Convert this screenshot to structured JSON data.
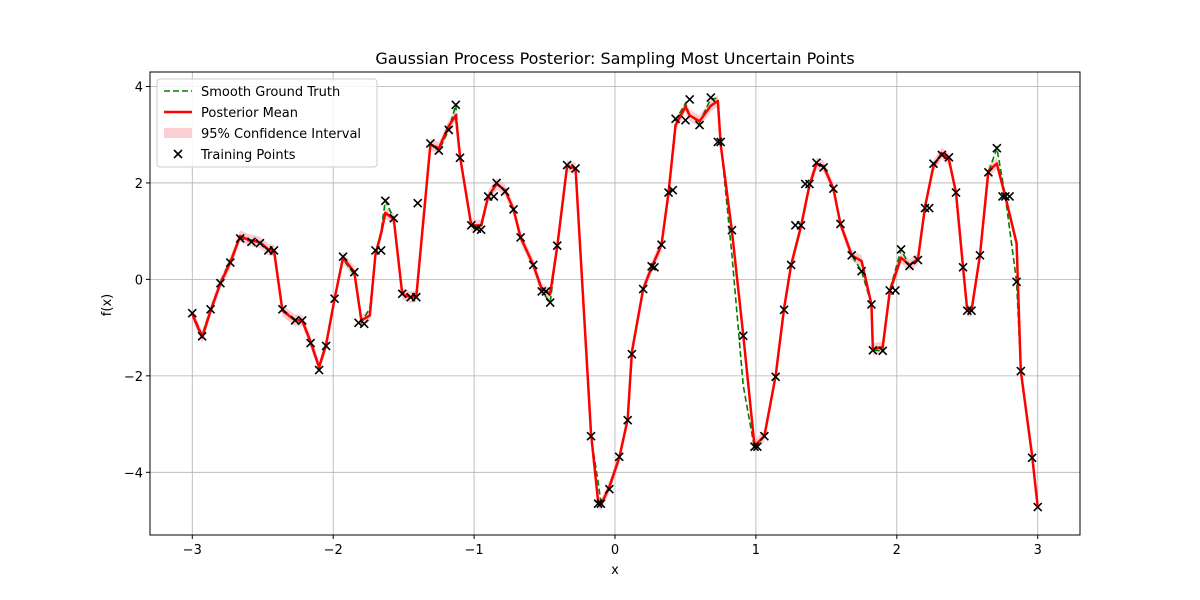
{
  "chart_data": {
    "type": "line",
    "title": "Gaussian Process Posterior: Sampling Most Uncertain Points",
    "xlabel": "x",
    "ylabel": "f(x)",
    "xlim": [
      -3.3,
      3.3
    ],
    "ylim": [
      -5.3,
      4.3
    ],
    "xticks": [
      -3,
      -2,
      -1,
      0,
      1,
      2,
      3
    ],
    "yticks": [
      -4,
      -2,
      0,
      2,
      4
    ],
    "grid": true,
    "legend_position": "top-left",
    "colors": {
      "ground_truth": "#008000",
      "posterior_mean": "#ff0000",
      "confidence": "#f4a0aa",
      "training": "#000000"
    },
    "legend": [
      {
        "label": "Smooth Ground Truth",
        "kind": "dashed-line",
        "color": "#008000"
      },
      {
        "label": "Posterior Mean",
        "kind": "line",
        "color": "#ff0000"
      },
      {
        "label": "95% Confidence Interval",
        "kind": "patch",
        "color": "#f4a0aa"
      },
      {
        "label": "Training Points",
        "kind": "x-marker",
        "color": "#000000"
      }
    ],
    "training_points": [
      [
        -3.0,
        -0.7
      ],
      [
        -2.93,
        -1.18
      ],
      [
        -2.87,
        -0.62
      ],
      [
        -2.8,
        -0.08
      ],
      [
        -2.73,
        0.35
      ],
      [
        -2.66,
        0.85
      ],
      [
        -2.58,
        0.78
      ],
      [
        -2.52,
        0.75
      ],
      [
        -2.46,
        0.6
      ],
      [
        -2.42,
        0.6
      ],
      [
        -2.36,
        -0.62
      ],
      [
        -2.27,
        -0.85
      ],
      [
        -2.22,
        -0.85
      ],
      [
        -2.16,
        -1.32
      ],
      [
        -2.1,
        -1.88
      ],
      [
        -2.05,
        -1.38
      ],
      [
        -1.99,
        -0.4
      ],
      [
        -1.93,
        0.47
      ],
      [
        -1.85,
        0.15
      ],
      [
        -1.82,
        -0.9
      ],
      [
        -1.78,
        -0.92
      ],
      [
        -1.7,
        0.6
      ],
      [
        -1.66,
        0.6
      ],
      [
        -1.63,
        1.63
      ],
      [
        -1.57,
        1.27
      ],
      [
        -1.51,
        -0.3
      ],
      [
        -1.45,
        -0.37
      ],
      [
        -1.41,
        -0.37
      ],
      [
        -1.4,
        1.58
      ],
      [
        -1.31,
        2.82
      ],
      [
        -1.25,
        2.67
      ],
      [
        -1.18,
        3.1
      ],
      [
        -1.13,
        3.62
      ],
      [
        -1.1,
        2.52
      ],
      [
        -1.02,
        1.12
      ],
      [
        -0.98,
        1.05
      ],
      [
        -0.95,
        1.03
      ],
      [
        -0.9,
        1.72
      ],
      [
        -0.86,
        1.72
      ],
      [
        -0.84,
        2.0
      ],
      [
        -0.78,
        1.82
      ],
      [
        -0.72,
        1.45
      ],
      [
        -0.67,
        0.87
      ],
      [
        -0.58,
        0.3
      ],
      [
        -0.52,
        -0.25
      ],
      [
        -0.49,
        -0.25
      ],
      [
        -0.46,
        -0.48
      ],
      [
        -0.41,
        0.7
      ],
      [
        -0.34,
        2.37
      ],
      [
        -0.28,
        2.3
      ],
      [
        -0.17,
        -3.25
      ],
      [
        -0.12,
        -4.65
      ],
      [
        -0.1,
        -4.65
      ],
      [
        -0.04,
        -4.35
      ],
      [
        0.03,
        -3.68
      ],
      [
        0.09,
        -2.92
      ],
      [
        0.12,
        -1.55
      ],
      [
        0.2,
        -0.2
      ],
      [
        0.26,
        0.27
      ],
      [
        0.28,
        0.25
      ],
      [
        0.33,
        0.72
      ],
      [
        0.38,
        1.8
      ],
      [
        0.41,
        1.85
      ],
      [
        0.43,
        3.33
      ],
      [
        0.5,
        3.3
      ],
      [
        0.53,
        3.73
      ],
      [
        0.6,
        3.2
      ],
      [
        0.68,
        3.77
      ],
      [
        0.73,
        2.85
      ],
      [
        0.75,
        2.85
      ],
      [
        0.83,
        1.02
      ],
      [
        0.91,
        -1.17
      ],
      [
        0.99,
        -3.47
      ],
      [
        1.01,
        -3.47
      ],
      [
        1.06,
        -3.25
      ],
      [
        1.14,
        -2.02
      ],
      [
        1.2,
        -0.63
      ],
      [
        1.25,
        0.3
      ],
      [
        1.28,
        1.12
      ],
      [
        1.32,
        1.12
      ],
      [
        1.35,
        1.98
      ],
      [
        1.38,
        1.98
      ],
      [
        1.43,
        2.42
      ],
      [
        1.48,
        2.32
      ],
      [
        1.55,
        1.88
      ],
      [
        1.6,
        1.15
      ],
      [
        1.68,
        0.5
      ],
      [
        1.75,
        0.17
      ],
      [
        1.82,
        -0.52
      ],
      [
        1.83,
        -1.47
      ],
      [
        1.9,
        -1.48
      ],
      [
        1.95,
        -0.23
      ],
      [
        1.99,
        -0.23
      ],
      [
        2.03,
        0.62
      ],
      [
        2.09,
        0.28
      ],
      [
        2.15,
        0.4
      ],
      [
        2.2,
        1.48
      ],
      [
        2.23,
        1.48
      ],
      [
        2.26,
        2.4
      ],
      [
        2.32,
        2.58
      ],
      [
        2.37,
        2.53
      ],
      [
        2.42,
        1.8
      ],
      [
        2.47,
        0.25
      ],
      [
        2.5,
        -0.65
      ],
      [
        2.53,
        -0.65
      ],
      [
        2.59,
        0.5
      ],
      [
        2.65,
        2.22
      ],
      [
        2.71,
        2.72
      ],
      [
        2.75,
        1.72
      ],
      [
        2.77,
        1.72
      ],
      [
        2.8,
        1.72
      ],
      [
        2.85,
        -0.05
      ],
      [
        2.88,
        -1.9
      ],
      [
        2.96,
        -3.7
      ],
      [
        3.0,
        -4.72
      ]
    ],
    "posterior_mean": {
      "x": [
        -3.0,
        -2.93,
        -2.87,
        -2.8,
        -2.73,
        -2.66,
        -2.6,
        -2.52,
        -2.46,
        -2.42,
        -2.36,
        -2.27,
        -2.22,
        -2.16,
        -2.1,
        -2.05,
        -1.99,
        -1.93,
        -1.85,
        -1.8,
        -1.74,
        -1.7,
        -1.66,
        -1.63,
        -1.57,
        -1.51,
        -1.45,
        -1.41,
        -1.31,
        -1.25,
        -1.18,
        -1.13,
        -1.1,
        -1.02,
        -0.95,
        -0.9,
        -0.84,
        -0.78,
        -0.72,
        -0.67,
        -0.58,
        -0.52,
        -0.46,
        -0.41,
        -0.34,
        -0.28,
        -0.17,
        -0.12,
        -0.1,
        -0.04,
        0.03,
        0.09,
        0.12,
        0.2,
        0.26,
        0.33,
        0.38,
        0.43,
        0.5,
        0.53,
        0.6,
        0.68,
        0.73,
        0.75,
        0.83,
        0.91,
        0.99,
        1.06,
        1.14,
        1.2,
        1.25,
        1.32,
        1.38,
        1.43,
        1.48,
        1.55,
        1.6,
        1.68,
        1.75,
        1.82,
        1.83,
        1.9,
        1.95,
        2.03,
        2.09,
        2.15,
        2.2,
        2.26,
        2.32,
        2.37,
        2.42,
        2.47,
        2.5,
        2.53,
        2.59,
        2.65,
        2.71,
        2.77,
        2.85,
        2.88,
        2.96,
        3.0
      ],
      "y": [
        -0.72,
        -1.2,
        -0.65,
        -0.08,
        0.35,
        0.9,
        0.82,
        0.77,
        0.62,
        0.6,
        -0.65,
        -0.85,
        -0.85,
        -1.3,
        -1.82,
        -1.35,
        -0.4,
        0.45,
        0.15,
        -0.85,
        -0.75,
        0.52,
        0.95,
        1.38,
        1.25,
        -0.3,
        -0.37,
        -0.35,
        2.8,
        2.72,
        3.18,
        3.4,
        2.55,
        1.12,
        1.12,
        1.72,
        1.98,
        1.85,
        1.45,
        0.87,
        0.3,
        -0.2,
        -0.3,
        0.68,
        2.35,
        2.3,
        -3.2,
        -4.6,
        -4.68,
        -4.3,
        -3.7,
        -2.9,
        -1.5,
        -0.2,
        0.25,
        0.72,
        1.8,
        3.2,
        3.58,
        3.4,
        3.28,
        3.6,
        3.7,
        2.8,
        1.0,
        -1.15,
        -3.45,
        -3.25,
        -2.0,
        -0.6,
        0.3,
        1.1,
        1.95,
        2.4,
        2.35,
        1.88,
        1.15,
        0.5,
        0.38,
        -0.52,
        -1.45,
        -1.4,
        -0.25,
        0.45,
        0.3,
        0.42,
        1.5,
        2.35,
        2.62,
        2.48,
        1.8,
        0.25,
        -0.65,
        -0.65,
        0.5,
        2.25,
        2.4,
        1.72,
        0.75,
        -1.9,
        -3.65,
        -4.72
      ]
    },
    "ground_truth": {
      "x": [
        -3.0,
        -2.93,
        -2.87,
        -2.8,
        -2.73,
        -2.66,
        -2.6,
        -2.52,
        -2.46,
        -2.42,
        -2.36,
        -2.27,
        -2.22,
        -2.16,
        -2.1,
        -2.05,
        -1.99,
        -1.93,
        -1.85,
        -1.8,
        -1.74,
        -1.7,
        -1.66,
        -1.63,
        -1.57,
        -1.51,
        -1.45,
        -1.41,
        -1.31,
        -1.25,
        -1.18,
        -1.13,
        -1.1,
        -1.02,
        -0.95,
        -0.9,
        -0.84,
        -0.78,
        -0.72,
        -0.67,
        -0.58,
        -0.52,
        -0.46,
        -0.41,
        -0.34,
        -0.28,
        -0.17,
        -0.12,
        -0.1,
        -0.04,
        0.03,
        0.09,
        0.12,
        0.2,
        0.26,
        0.33,
        0.38,
        0.43,
        0.5,
        0.53,
        0.6,
        0.68,
        0.73,
        0.75,
        0.83,
        0.91,
        0.99,
        1.06,
        1.14,
        1.2,
        1.25,
        1.32,
        1.38,
        1.43,
        1.48,
        1.55,
        1.6,
        1.68,
        1.75,
        1.82,
        1.83,
        1.9,
        1.95,
        2.03,
        2.09,
        2.15,
        2.2,
        2.26,
        2.32,
        2.37,
        2.42,
        2.47,
        2.5,
        2.53,
        2.59,
        2.65,
        2.71,
        2.77,
        2.85,
        2.88,
        2.96,
        3.0
      ],
      "y": [
        -0.7,
        -1.15,
        -0.62,
        -0.05,
        0.4,
        0.85,
        0.8,
        0.76,
        0.6,
        0.58,
        -0.62,
        -0.83,
        -0.84,
        -1.3,
        -1.85,
        -1.38,
        -0.42,
        0.42,
        0.1,
        -0.9,
        -0.6,
        0.5,
        1.0,
        1.63,
        1.27,
        -0.3,
        -0.37,
        -0.37,
        2.8,
        2.67,
        3.1,
        3.62,
        2.52,
        1.12,
        1.05,
        1.72,
        2.0,
        1.82,
        1.45,
        0.87,
        0.3,
        -0.25,
        -0.48,
        0.7,
        2.37,
        2.3,
        -3.25,
        -4.2,
        -4.62,
        -4.35,
        -3.68,
        -2.92,
        -1.55,
        -0.22,
        0.27,
        0.72,
        1.82,
        3.3,
        3.65,
        3.4,
        3.25,
        3.75,
        3.75,
        2.85,
        0.5,
        -2.2,
        -3.5,
        -3.25,
        -2.02,
        -0.63,
        0.3,
        1.12,
        1.98,
        2.42,
        2.32,
        1.88,
        1.15,
        0.5,
        0.17,
        -0.52,
        -1.47,
        -1.48,
        -0.23,
        0.62,
        0.28,
        0.4,
        1.48,
        2.4,
        2.58,
        2.53,
        1.8,
        0.25,
        -0.65,
        -0.65,
        0.5,
        2.22,
        2.72,
        1.72,
        -0.05,
        -1.9,
        -3.7,
        -4.72
      ]
    },
    "confidence_halfwidth": 0.12
  }
}
